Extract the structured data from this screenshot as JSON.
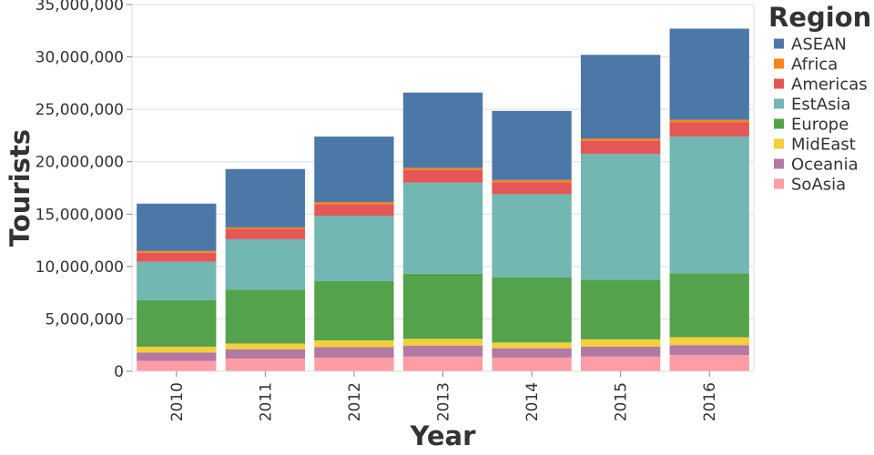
{
  "chart_data": {
    "type": "bar",
    "stacked": true,
    "categories": [
      "2010",
      "2011",
      "2012",
      "2013",
      "2014",
      "2015",
      "2016"
    ],
    "xlabel": "Year",
    "ylabel": "Tourists",
    "ylim": [
      0,
      35000000
    ],
    "yticks": [
      0,
      5000000,
      10000000,
      15000000,
      20000000,
      25000000,
      30000000,
      35000000
    ],
    "ytick_labels": [
      "0",
      "5,000,000",
      "10,000,000",
      "15,000,000",
      "20,000,000",
      "25,000,000",
      "30,000,000",
      "35,000,000"
    ],
    "grid": true,
    "legend": {
      "title": "Region",
      "placement": "right"
    },
    "series": [
      {
        "name": "SoAsia",
        "color": "#ff9da7",
        "values": [
          1000000,
          1200000,
          1300000,
          1400000,
          1300000,
          1400000,
          1550000
        ]
      },
      {
        "name": "Oceania",
        "color": "#b279a2",
        "values": [
          800000,
          900000,
          1000000,
          1050000,
          900000,
          950000,
          950000
        ]
      },
      {
        "name": "MidEast",
        "color": "#f2cf3b",
        "values": [
          550000,
          550000,
          650000,
          650000,
          550000,
          700000,
          750000
        ]
      },
      {
        "name": "Europe",
        "color": "#54a24b",
        "values": [
          4450000,
          5150000,
          5650000,
          6200000,
          6200000,
          5700000,
          6100000
        ]
      },
      {
        "name": "EstAsia",
        "color": "#72b7b2",
        "values": [
          3650000,
          4800000,
          6250000,
          8700000,
          7950000,
          12000000,
          13050000
        ]
      },
      {
        "name": "Americas",
        "color": "#e45756",
        "values": [
          850000,
          950000,
          1100000,
          1200000,
          1150000,
          1250000,
          1350000
        ]
      },
      {
        "name": "Africa",
        "color": "#f58518",
        "values": [
          180000,
          180000,
          200000,
          200000,
          200000,
          200000,
          250000
        ]
      },
      {
        "name": "ASEAN",
        "color": "#4c78a8",
        "values": [
          4520000,
          5570000,
          6250000,
          7200000,
          6600000,
          8000000,
          8700000
        ]
      }
    ]
  }
}
